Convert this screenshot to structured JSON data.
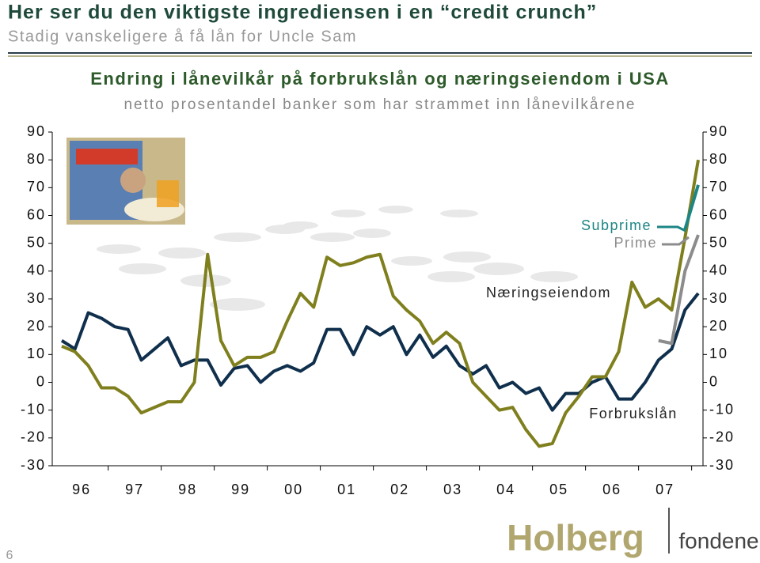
{
  "header": {
    "title": "Her ser du den viktigste ingrediensen i en “credit crunch”",
    "subtitle": "Stadig vanskeligere å få lån for Uncle Sam"
  },
  "chart_data": {
    "type": "line",
    "title": "Endring i lånevilkår på forbrukslån og næringseiendom i USA",
    "subtitle": "netto prosentandel banker som har strammet inn lånevilkårene",
    "categories": [
      null,
      "96",
      null,
      null,
      null,
      "97",
      null,
      null,
      null,
      "98",
      null,
      null,
      null,
      "99",
      null,
      null,
      null,
      "00",
      null,
      null,
      null,
      "01",
      null,
      null,
      null,
      "02",
      null,
      null,
      null,
      "03",
      null,
      null,
      null,
      "04",
      null,
      null,
      null,
      "05",
      null,
      null,
      null,
      "06",
      null,
      null,
      null,
      "07",
      null,
      null,
      null
    ],
    "ylim": [
      -30,
      90
    ],
    "yticks": [
      -30,
      -20,
      -10,
      0,
      10,
      20,
      30,
      40,
      50,
      60,
      70,
      80,
      90
    ],
    "series": [
      {
        "name": "Forbrukslån",
        "color": "#0f2f4c",
        "values": [
          15,
          12,
          25,
          23,
          20,
          19,
          8,
          12,
          16,
          6,
          8,
          8,
          -1,
          5,
          6,
          0,
          4,
          6,
          4,
          7,
          19,
          19,
          10,
          20,
          17,
          20,
          10,
          17,
          9,
          13,
          6,
          3,
          6,
          -2,
          0,
          -4,
          -2,
          -10,
          -4,
          -4,
          0,
          2,
          -6,
          -6,
          0,
          8,
          12,
          26,
          32
        ]
      },
      {
        "name": "Næringseiendom",
        "color": "#7f7f1e",
        "values": [
          13,
          11,
          6,
          -2,
          -2,
          -5,
          -11,
          -9,
          -7,
          -7,
          0,
          46,
          15,
          6,
          9,
          9,
          11,
          22,
          32,
          27,
          45,
          42,
          43,
          45,
          46,
          31,
          26,
          22,
          14,
          18,
          14,
          0,
          -5,
          -10,
          -9,
          -17,
          -23,
          -22,
          -11,
          -5,
          2,
          2,
          11,
          36,
          27,
          30,
          26,
          52,
          80
        ]
      },
      {
        "name": "Subprime",
        "color": "#1c8585",
        "values": [
          null,
          null,
          null,
          null,
          null,
          null,
          null,
          null,
          null,
          null,
          null,
          null,
          null,
          null,
          null,
          null,
          null,
          null,
          null,
          null,
          null,
          null,
          null,
          null,
          null,
          null,
          null,
          null,
          null,
          null,
          null,
          null,
          null,
          null,
          null,
          null,
          null,
          null,
          null,
          null,
          null,
          null,
          null,
          null,
          null,
          null,
          null,
          55,
          71
        ]
      },
      {
        "name": "Prime",
        "color": "#8c8c8c",
        "values": [
          null,
          null,
          null,
          null,
          null,
          null,
          null,
          null,
          null,
          null,
          null,
          null,
          null,
          null,
          null,
          null,
          null,
          null,
          null,
          null,
          null,
          null,
          null,
          null,
          null,
          null,
          null,
          null,
          null,
          null,
          null,
          null,
          null,
          null,
          null,
          null,
          null,
          null,
          null,
          null,
          null,
          null,
          null,
          null,
          null,
          15,
          14,
          40,
          53
        ]
      }
    ]
  },
  "footer": {
    "logo_main": "Holberg",
    "logo_sub": "fondene",
    "page": "6"
  }
}
